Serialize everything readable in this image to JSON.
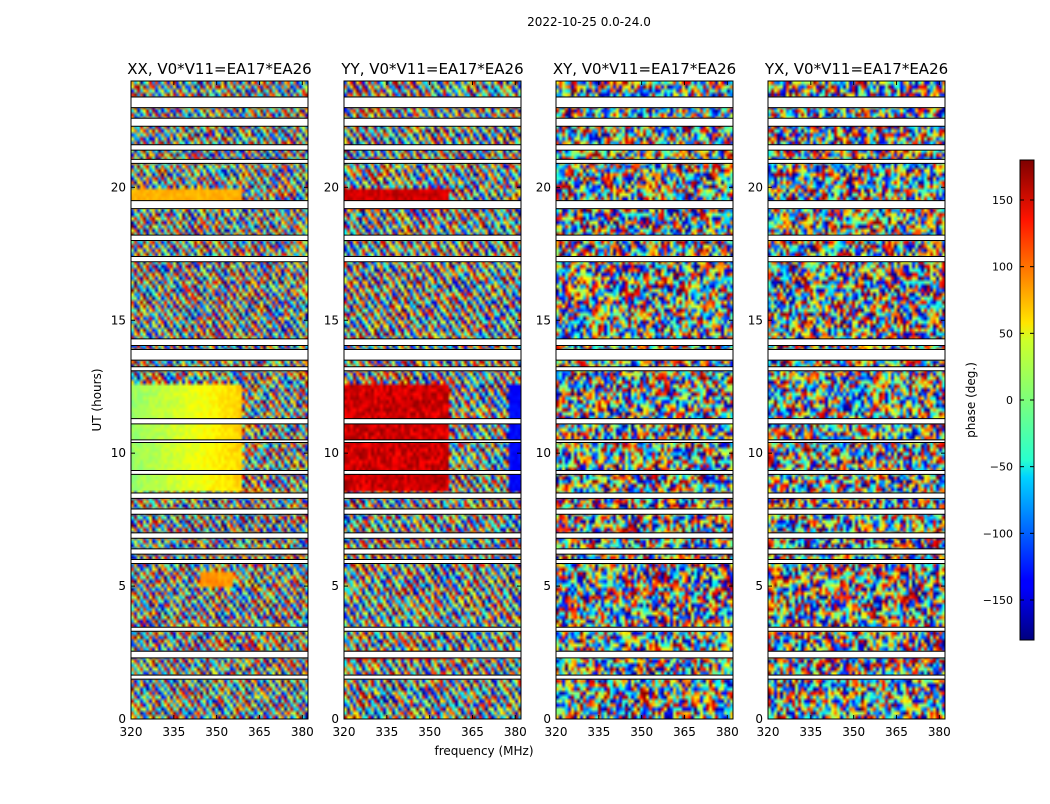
{
  "chart_data": {
    "type": "heatmap",
    "suptitle": "2022-10-25 0.0-24.0",
    "xlabel": "frequency (MHz)",
    "ylabel": "UT (hours)",
    "xlim": [
      320,
      382
    ],
    "ylim": [
      0,
      24
    ],
    "xticks": [
      320,
      335,
      350,
      365,
      380
    ],
    "yticks": [
      0,
      5,
      10,
      15,
      20
    ],
    "panels": [
      {
        "title": "XX, V0*V11=EA17*EA26",
        "pattern": "xx"
      },
      {
        "title": "YY, V0*V11=EA17*EA26",
        "pattern": "yy"
      },
      {
        "title": "XY, V0*V11=EA17*EA26",
        "pattern": "noise"
      },
      {
        "title": "YX, V0*V11=EA17*EA26",
        "pattern": "noise"
      }
    ],
    "colorbar": {
      "label": "phase (deg.)",
      "colormap": "jet",
      "range": [
        -180,
        180
      ],
      "ticks": [
        -150,
        -100,
        -50,
        0,
        50,
        100,
        150
      ]
    },
    "flagged_bands_ut": [
      [
        23.0,
        23.4
      ],
      [
        22.3,
        22.6
      ],
      [
        21.4,
        21.6
      ],
      [
        20.9,
        21.05
      ],
      [
        19.2,
        19.5
      ],
      [
        18.0,
        18.2
      ],
      [
        17.2,
        17.4
      ],
      [
        14.05,
        14.3
      ],
      [
        13.5,
        13.9
      ],
      [
        13.1,
        13.25
      ],
      [
        11.1,
        11.3
      ],
      [
        10.4,
        10.5
      ],
      [
        9.2,
        9.35
      ],
      [
        8.3,
        8.5
      ],
      [
        7.7,
        7.9
      ],
      [
        6.8,
        7.0
      ],
      [
        6.2,
        6.4
      ],
      [
        5.85,
        6.0
      ],
      [
        3.3,
        3.45
      ],
      [
        2.3,
        2.55
      ],
      [
        1.5,
        1.65
      ]
    ]
  }
}
